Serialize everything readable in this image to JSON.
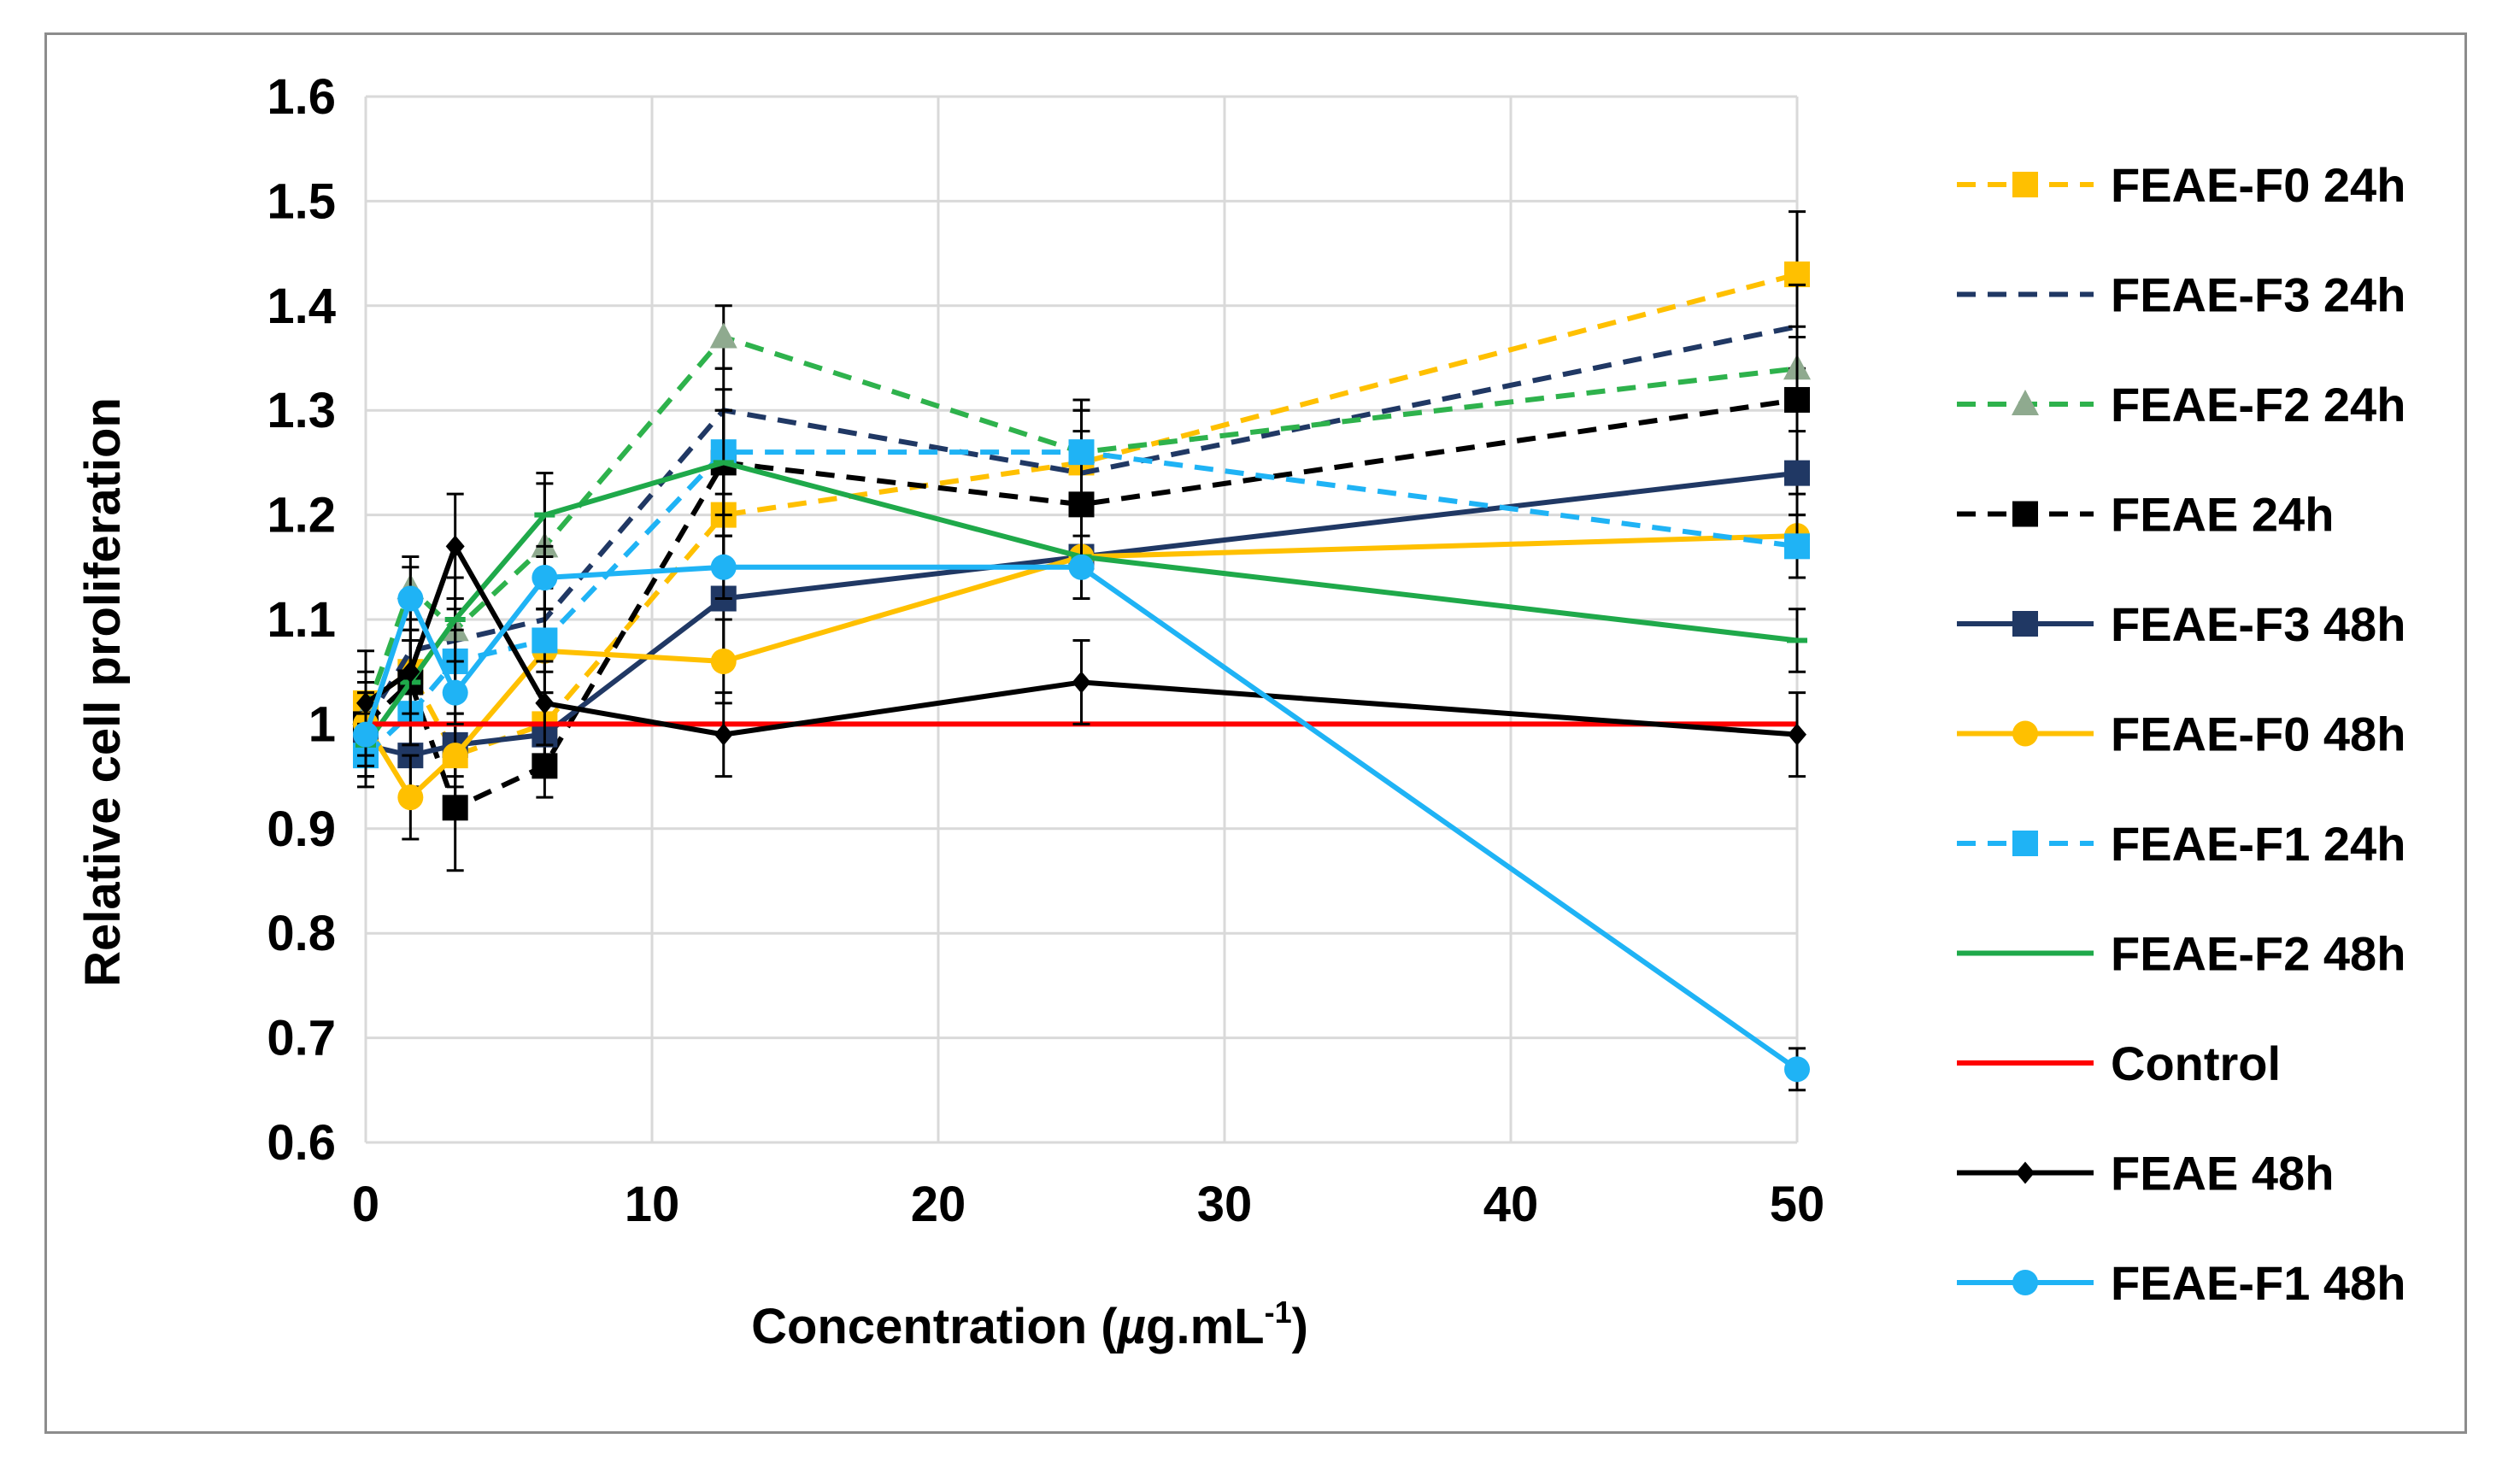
{
  "chart_data": {
    "type": "line",
    "title": "",
    "xlabel": "Concentration (",
    "xlabel_unit_main": "µ",
    "xlabel_unit_rest": "g.mL",
    "xlabel_sup": "-1",
    "xlabel_close": ")",
    "ylabel": "Relative cell proliferation",
    "xlim": [
      0,
      50
    ],
    "ylim": [
      0.6,
      1.6
    ],
    "xticks": [
      0,
      10,
      20,
      30,
      40,
      50
    ],
    "yticks": [
      0.6,
      0.7,
      0.8,
      0.9,
      1,
      1.1,
      1.2,
      1.3,
      1.4,
      1.5,
      1.6
    ],
    "ytick_labels": [
      "0.6",
      "0.7",
      "0.8",
      "0.9",
      "1",
      "1.1",
      "1.2",
      "1.3",
      "1.4",
      "1.5",
      "1.6"
    ],
    "grid": true,
    "legend_position": "right",
    "x": [
      0,
      1.5625,
      3.125,
      6.25,
      12.5,
      25,
      50
    ],
    "series": [
      {
        "name": "FEAE-F0 24h",
        "color": "#FFC000",
        "dash": "dashed",
        "marker": "square",
        "values": [
          1.02,
          1.05,
          0.97,
          1.0,
          1.2,
          1.25,
          1.43
        ],
        "errors": [
          0.03,
          0.03,
          0.03,
          0.03,
          0.05,
          0.05,
          0.06
        ]
      },
      {
        "name": "FEAE-F3 24h",
        "color": "#203864",
        "dash": "dashed",
        "marker": "none",
        "values": [
          1.0,
          1.07,
          1.08,
          1.1,
          1.3,
          1.24,
          1.38
        ],
        "errors": [
          0.03,
          0.03,
          0.03,
          0.03,
          0.04,
          0.04,
          0.04
        ]
      },
      {
        "name": "FEAE-F2 24h",
        "color": "#2EB24C",
        "dash": "dashed",
        "marker": "triangle",
        "values": [
          1.01,
          1.13,
          1.09,
          1.17,
          1.37,
          1.26,
          1.34
        ],
        "errors": [
          0.03,
          0.03,
          0.03,
          0.06,
          0.03,
          0.05,
          0.04
        ]
      },
      {
        "name": "FEAE 24h",
        "color": "#000000",
        "dash": "dashed",
        "marker": "square",
        "values": [
          1.0,
          1.04,
          0.92,
          0.96,
          1.25,
          1.21,
          1.31
        ],
        "errors": [
          0.04,
          0.04,
          0.06,
          0.03,
          0.07,
          0.05,
          0.06
        ]
      },
      {
        "name": "FEAE-F3 48h",
        "color": "#203864",
        "dash": "solid",
        "marker": "square",
        "values": [
          0.98,
          0.97,
          0.98,
          0.99,
          1.12,
          1.16,
          1.24
        ],
        "errors": [
          0.03,
          0.03,
          0.03,
          0.03,
          0.06,
          0.04,
          0.04
        ]
      },
      {
        "name": "FEAE-F0 48h",
        "color": "#FFC000",
        "dash": "solid",
        "marker": "circle",
        "values": [
          1.0,
          0.93,
          0.97,
          1.07,
          1.06,
          1.16,
          1.18
        ],
        "errors": [
          0.03,
          0.04,
          0.04,
          0.04,
          0.04,
          0.04,
          0.04
        ]
      },
      {
        "name": "FEAE-F1 24h",
        "color": "#1FB3F5",
        "dash": "dashed",
        "marker": "square",
        "values": [
          0.97,
          1.01,
          1.06,
          1.08,
          1.26,
          1.26,
          1.17
        ],
        "errors": [
          0.03,
          0.03,
          0.03,
          0.03,
          0.04,
          0.04,
          0.03
        ]
      },
      {
        "name": "FEAE-F2 48h",
        "color": "#1FA94A",
        "dash": "solid",
        "marker": "dash",
        "values": [
          0.98,
          1.04,
          1.1,
          1.2,
          1.25,
          1.16,
          1.08
        ],
        "errors": [
          0.03,
          0.04,
          0.04,
          0.04,
          0.05,
          0.04,
          0.03
        ]
      },
      {
        "name": "Control",
        "color": "#FF0000",
        "dash": "solid",
        "marker": "none",
        "values": [
          1,
          1,
          1,
          1,
          1,
          1,
          1
        ],
        "errors": [
          0,
          0,
          0,
          0,
          0,
          0,
          0
        ]
      },
      {
        "name": "FEAE 48h",
        "color": "#000000",
        "dash": "solid",
        "marker": "diamond",
        "values": [
          1.02,
          1.05,
          1.17,
          1.02,
          0.99,
          1.04,
          0.99
        ],
        "errors": [
          0.05,
          0.04,
          0.05,
          0.04,
          0.04,
          0.04,
          0.04
        ]
      },
      {
        "name": "FEAE-F1 48h",
        "color": "#1FB3F5",
        "dash": "solid",
        "marker": "circle",
        "values": [
          0.99,
          1.12,
          1.03,
          1.14,
          1.15,
          1.15,
          0.67
        ],
        "errors": [
          0.03,
          0.03,
          0.03,
          0.03,
          0.03,
          0.03,
          0.02
        ]
      }
    ]
  }
}
